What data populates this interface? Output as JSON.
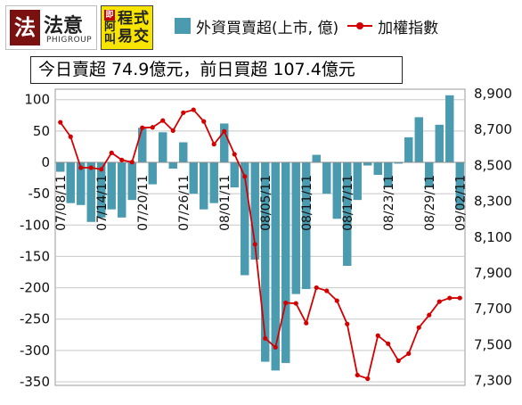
{
  "logos": {
    "left": {
      "text": "法意",
      "sub": "PHIGROUP",
      "seal": "法"
    },
    "right": {
      "mark": "即",
      "col1": "阿叫",
      "col2": "程式易交"
    }
  },
  "summary": "今日賣超 74.9億元，前日買超 107.4億元",
  "colors": {
    "bar": "#4a9bb0",
    "line": "#d40000",
    "grid": "#c8c8c8"
  },
  "chart_data": {
    "type": "bar",
    "series": [
      {
        "name": "外資買賣超(上市, 億)",
        "type": "bar",
        "axis": "left",
        "values": [
          -15,
          -65,
          -68,
          -95,
          -88,
          -75,
          -88,
          -60,
          55,
          -35,
          48,
          -10,
          32,
          -50,
          -75,
          -65,
          62,
          -40,
          -180,
          -155,
          -318,
          -332,
          -320,
          -210,
          -202,
          12,
          -50,
          -90,
          -165,
          -60,
          -5,
          -20,
          -38,
          -2,
          40,
          72,
          -38,
          60,
          107,
          -75
        ]
      },
      {
        "name": "加權指數",
        "type": "line",
        "axis": "right",
        "values": [
          8740,
          8660,
          8487,
          8487,
          8478,
          8570,
          8530,
          8518,
          8710,
          8712,
          8750,
          8694,
          8794,
          8810,
          8745,
          8618,
          8690,
          8562,
          8438,
          8060,
          7535,
          7485,
          7733,
          7730,
          7620,
          7818,
          7800,
          7745,
          7615,
          7330,
          7310,
          7550,
          7505,
          7410,
          7450,
          7595,
          7665,
          7740,
          7760,
          7760
        ]
      }
    ],
    "x_tick_labels": [
      "07/08/11",
      "07/14/11",
      "07/20/11",
      "07/26/11",
      "08/01/11",
      "08/05/11",
      "08/11/11",
      "08/17/11",
      "08/23/11",
      "08/29/11",
      "09/02/11"
    ],
    "x_tick_indices": [
      0,
      4,
      8,
      12,
      16,
      20,
      24,
      28,
      32,
      36,
      39
    ],
    "left_axis": {
      "ylim": [
        -350,
        120
      ],
      "ticks": [
        100,
        50,
        0,
        -50,
        -100,
        -150,
        -200,
        -250,
        -300,
        -350
      ]
    },
    "right_axis": {
      "ylim": [
        7300,
        8980
      ],
      "ticks": [
        "8,900",
        "8,700",
        "8,500",
        "8,300",
        "8,100",
        "7,900",
        "7,700",
        "7,500",
        "7,300"
      ]
    },
    "grid": true,
    "legend_placement": "top"
  }
}
